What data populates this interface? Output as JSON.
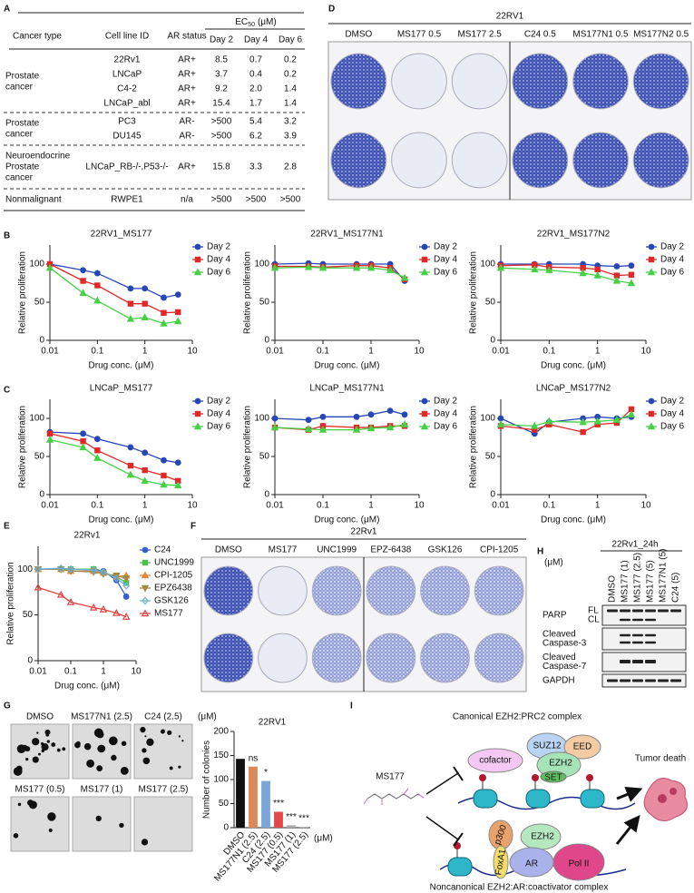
{
  "panel_labels": [
    "A",
    "B",
    "C",
    "D",
    "E",
    "F",
    "G",
    "H",
    "I"
  ],
  "table": {
    "headers": [
      "Cancer type",
      "Cell line ID",
      "AR status"
    ],
    "ec50": {
      "main": "EC",
      "sub": "50",
      "unit": "(μM)"
    },
    "days": [
      "Day 2",
      "Day 4",
      "Day 6"
    ],
    "groups": [
      {
        "label_lines": [
          "Prostate",
          "cancer"
        ],
        "rows": [
          {
            "cell": "22Rv1",
            "ar": "AR+",
            "color": "#d42a2a",
            "ec50": [
              "8.5",
              "0.7",
              "0.2"
            ]
          },
          {
            "cell": "LNCaP",
            "ar": "AR+",
            "color": "#d42a2a",
            "ec50": [
              "3.7",
              "0.4",
              "0.2"
            ]
          },
          {
            "cell": "C4-2",
            "ar": "AR+",
            "color": "#d42a2a",
            "ec50": [
              "9.2",
              "2.0",
              "1.4"
            ]
          },
          {
            "cell": "LNCaP_abl",
            "ar": "AR+",
            "color": "#d42a2a",
            "ec50": [
              "15.4",
              "1.7",
              "1.4"
            ]
          }
        ]
      },
      {
        "label_lines": [
          "Prostate",
          "cancer"
        ],
        "rows": [
          {
            "cell": "PC3",
            "ar": "AR-",
            "color": "#d42a2a",
            "ec50": [
              ">500",
              "5.4",
              "3.2"
            ]
          },
          {
            "cell": "DU145",
            "ar": "AR-",
            "color": "#d42a2a",
            "ec50": [
              ">500",
              "6.2",
              "3.9"
            ]
          }
        ]
      },
      {
        "label_lines": [
          "Neuroendocrine",
          "Prostate",
          "cancer"
        ],
        "rows": [
          {
            "cell": "LNCaP_RB-/-,P53-/-",
            "ar": "AR+",
            "color": "#d42a2a",
            "ec50": [
              "15.8",
              "3.3",
              "2.8"
            ]
          }
        ]
      },
      {
        "label_lines": [
          "Nonmalignant"
        ],
        "rows": [
          {
            "cell": "RWPE1",
            "ar": "n/a",
            "color": "#3aad3a",
            "ec50": [
              ">500",
              ">500",
              ">500"
            ]
          }
        ]
      }
    ]
  },
  "plates_d": {
    "title": "22RV1",
    "labels": [
      "DMSO",
      "MS177 0.5",
      "MS177 2.5",
      "C24 0.5",
      "MS177N1 0.5",
      "MS177N2 0.5"
    ]
  },
  "plates_f": {
    "title": "22Rv1",
    "labels": [
      "DMSO",
      "MS177",
      "UNC1999",
      "EPZ-6438",
      "GSK126",
      "CPI-1205"
    ]
  },
  "blot_h": {
    "title": "22Rv1_24h",
    "unit": "(μM)",
    "lanes": [
      "DMSO",
      "MS177 (1)",
      "MS177 (2.5)",
      "MS177 (5)",
      "MS177N1 (5)",
      "C24 (5)"
    ],
    "rows": [
      {
        "lines": [
          "PARP"
        ],
        "sub": [
          "FL",
          "CL"
        ]
      },
      {
        "lines": [
          "Cleaved",
          "Caspase-3"
        ]
      },
      {
        "lines": [
          "Cleaved",
          "Caspase-7"
        ]
      },
      {
        "lines": [
          "GAPDH"
        ]
      }
    ]
  },
  "colony_g": {
    "top": [
      "DMSO",
      "MS177N1 (2.5)",
      "C24 (2.5)"
    ],
    "unit": "(μM)",
    "bottom": [
      "MS177 (0.5)",
      "MS177 (1)",
      "MS177 (2.5)"
    ]
  },
  "diagram_i": {
    "canonical": "Canonical EZH2:PRC2 complex",
    "suz12": "SUZ12",
    "eed": "EED",
    "cofactor": "cofactor",
    "ezh2": "EZH2",
    "set": "SET",
    "drug": "MS177",
    "outcome": "Tumor death",
    "p300": "p300",
    "foxa1": "FoxA1",
    "ezh2b": "EZH2",
    "ar": "AR",
    "pol2": "Pol II",
    "noncanonical": "Noncanonical EZH2:AR:coactivator complex"
  },
  "chart_data": [
    {
      "type": "line",
      "title": "22RV1_MS177",
      "xlabel": "Drug conc. (μM)",
      "ylabel": "Relative proliferation",
      "xscale": "log",
      "x": [
        0.01,
        0.05,
        0.1,
        0.5,
        1,
        2.5,
        5
      ],
      "xlim": [
        0.01,
        10
      ],
      "xticks": [
        0.01,
        0.1,
        1,
        10
      ],
      "ylim": [
        0,
        125
      ],
      "yticks": [
        0,
        50,
        100
      ],
      "legend": "upper right",
      "series": [
        {
          "name": "Day 2",
          "color": "#2747b8",
          "marker": "circle",
          "values": [
            100,
            92,
            88,
            68,
            68,
            56,
            60
          ]
        },
        {
          "name": "Day 4",
          "color": "#e02828",
          "marker": "square",
          "values": [
            100,
            78,
            72,
            48,
            48,
            36,
            37
          ]
        },
        {
          "name": "Day 6",
          "color": "#46d046",
          "marker": "triangle",
          "values": [
            95,
            62,
            52,
            28,
            30,
            22,
            25
          ]
        }
      ]
    },
    {
      "type": "line",
      "title": "22RV1_MS177N1",
      "xlabel": "Drug conc. (μM)",
      "ylabel": "Relative proliferation",
      "xscale": "log",
      "x": [
        0.01,
        0.05,
        0.1,
        0.5,
        1,
        2.5,
        5
      ],
      "xlim": [
        0.01,
        10
      ],
      "xticks": [
        0.01,
        0.1,
        1,
        10
      ],
      "ylim": [
        0,
        125
      ],
      "yticks": [
        0,
        50,
        100
      ],
      "legend": "upper right",
      "series": [
        {
          "name": "Day 2",
          "color": "#2747b8",
          "marker": "circle",
          "values": [
            100,
            101,
            100,
            100,
            100,
            100,
            78
          ]
        },
        {
          "name": "Day 4",
          "color": "#e02828",
          "marker": "square",
          "values": [
            97,
            97,
            96,
            98,
            98,
            95,
            80
          ]
        },
        {
          "name": "Day 6",
          "color": "#46d046",
          "marker": "triangle",
          "values": [
            95,
            96,
            95,
            95,
            95,
            92,
            82
          ]
        }
      ]
    },
    {
      "type": "line",
      "title": "22RV1_MS177N2",
      "xlabel": "Drug conc. (μM)",
      "ylabel": "Relative proliferation",
      "xscale": "log",
      "x": [
        0.01,
        0.05,
        0.1,
        0.5,
        1,
        2.5,
        5
      ],
      "xlim": [
        0.01,
        10
      ],
      "xticks": [
        0.01,
        0.1,
        1,
        10
      ],
      "ylim": [
        0,
        125
      ],
      "yticks": [
        0,
        50,
        100
      ],
      "legend": "upper right",
      "series": [
        {
          "name": "Day 2",
          "color": "#2747b8",
          "marker": "circle",
          "values": [
            100,
            100,
            100,
            100,
            98,
            97,
            98
          ]
        },
        {
          "name": "Day 4",
          "color": "#e02828",
          "marker": "square",
          "values": [
            98,
            99,
            96,
            95,
            93,
            85,
            86
          ]
        },
        {
          "name": "Day 6",
          "color": "#46d046",
          "marker": "triangle",
          "values": [
            95,
            93,
            92,
            88,
            85,
            78,
            75
          ]
        }
      ]
    },
    {
      "type": "line",
      "title": "LNCaP_MS177",
      "xlabel": "Drug conc. (μM)",
      "ylabel": "Relative proliferation",
      "xscale": "log",
      "x": [
        0.01,
        0.05,
        0.1,
        0.5,
        1,
        2.5,
        5
      ],
      "xlim": [
        0.01,
        10
      ],
      "xticks": [
        0.01,
        0.1,
        1,
        10
      ],
      "ylim": [
        0,
        125
      ],
      "yticks": [
        0,
        50,
        100
      ],
      "legend": "upper right",
      "series": [
        {
          "name": "Day 2",
          "color": "#2747b8",
          "marker": "circle",
          "values": [
            82,
            80,
            73,
            62,
            55,
            45,
            42
          ]
        },
        {
          "name": "Day 4",
          "color": "#e02828",
          "marker": "square",
          "values": [
            80,
            70,
            58,
            38,
            32,
            25,
            18
          ]
        },
        {
          "name": "Day 6",
          "color": "#46d046",
          "marker": "triangle",
          "values": [
            72,
            62,
            48,
            26,
            18,
            13,
            12
          ]
        }
      ]
    },
    {
      "type": "line",
      "title": "LNCaP_MS177N1",
      "xlabel": "Drug conc. (μM)",
      "ylabel": "Relative proliferation",
      "xscale": "log",
      "x": [
        0.01,
        0.05,
        0.1,
        0.5,
        1,
        2.5,
        5
      ],
      "xlim": [
        0.01,
        10
      ],
      "xticks": [
        0.01,
        0.1,
        1,
        10
      ],
      "ylim": [
        0,
        125
      ],
      "yticks": [
        0,
        50,
        100
      ],
      "legend": "upper right",
      "series": [
        {
          "name": "Day 2",
          "color": "#2747b8",
          "marker": "circle",
          "values": [
            100,
            98,
            102,
            102,
            105,
            110,
            105
          ]
        },
        {
          "name": "Day 4",
          "color": "#e02828",
          "marker": "square",
          "values": [
            88,
            85,
            90,
            88,
            88,
            90,
            90
          ]
        },
        {
          "name": "Day 6",
          "color": "#46d046",
          "marker": "triangle",
          "values": [
            88,
            86,
            85,
            85,
            87,
            88,
            92
          ]
        }
      ]
    },
    {
      "type": "line",
      "title": "LNCaP_MS177N2",
      "xlabel": "Drug conc. (μM)",
      "ylabel": "Relative proliferation",
      "xscale": "log",
      "x": [
        0.01,
        0.05,
        0.1,
        0.5,
        1,
        2.5,
        5
      ],
      "xlim": [
        0.01,
        10
      ],
      "xticks": [
        0.01,
        0.1,
        1,
        10
      ],
      "ylim": [
        0,
        125
      ],
      "yticks": [
        0,
        50,
        100
      ],
      "legend": "upper right",
      "series": [
        {
          "name": "Day 2",
          "color": "#2747b8",
          "marker": "circle",
          "values": [
            100,
            80,
            95,
            100,
            102,
            100,
            102
          ]
        },
        {
          "name": "Day 4",
          "color": "#e02828",
          "marker": "square",
          "values": [
            90,
            85,
            92,
            82,
            92,
            94,
            112
          ]
        },
        {
          "name": "Day 6",
          "color": "#46d046",
          "marker": "triangle",
          "values": [
            92,
            90,
            96,
            95,
            96,
            98,
            105
          ]
        }
      ]
    },
    {
      "type": "line",
      "title": "22Rv1",
      "xlabel": "Drug conc. (μM)",
      "ylabel": "Relative proliferation",
      "xscale": "log",
      "x": [
        0.01,
        0.05,
        0.1,
        0.5,
        1,
        2.5,
        5
      ],
      "xlim": [
        0.01,
        10
      ],
      "xticks": [
        0.01,
        0.1,
        1,
        10
      ],
      "ylim": [
        0,
        125
      ],
      "yticks": [
        0,
        50,
        100
      ],
      "legend": "right",
      "series": [
        {
          "name": "C24",
          "color": "#3a5fcd",
          "marker": "circle",
          "values": [
            100,
            100,
            100,
            100,
            98,
            88,
            70
          ]
        },
        {
          "name": "UNC1999",
          "color": "#4cc24c",
          "marker": "square",
          "values": [
            100,
            100,
            100,
            100,
            96,
            92,
            85
          ]
        },
        {
          "name": "CPI-1205",
          "color": "#e0883a",
          "marker": "triangle",
          "values": [
            100,
            100,
            98,
            98,
            96,
            92,
            93
          ]
        },
        {
          "name": "EPZ6438",
          "color": "#a08a40",
          "marker": "triangle-down",
          "values": [
            100,
            100,
            98,
            97,
            95,
            93,
            90
          ]
        },
        {
          "name": "GSK126",
          "color": "#6ab0d6",
          "marker": "diamond",
          "open": true,
          "values": [
            100,
            101,
            100,
            99,
            97,
            90,
            82
          ]
        },
        {
          "name": "MS177",
          "color": "#e04040",
          "marker": "triangle",
          "open": true,
          "values": [
            80,
            72,
            64,
            58,
            56,
            52,
            48
          ]
        }
      ]
    },
    {
      "type": "bar",
      "title": "22RV1",
      "ylabel": "Number of colonies",
      "unit": "(μM)",
      "categories": [
        "DMSO",
        "MS177N1 (2.5)",
        "C24 (2.5)",
        "MS177 (0.5)",
        "MS177 (1)",
        "MS177 (2.5)"
      ],
      "values": [
        143,
        127,
        97,
        33,
        5,
        2
      ],
      "colors": [
        "#111111",
        "#d98a5a",
        "#7aa5d8",
        "#e04a4a",
        "#aaaaaa",
        "#b8b8b8"
      ],
      "significance": [
        null,
        "ns",
        "*",
        "***",
        "***",
        "***"
      ],
      "ylim": [
        0,
        200
      ],
      "yticks": [
        0,
        50,
        100,
        150,
        200
      ]
    }
  ]
}
